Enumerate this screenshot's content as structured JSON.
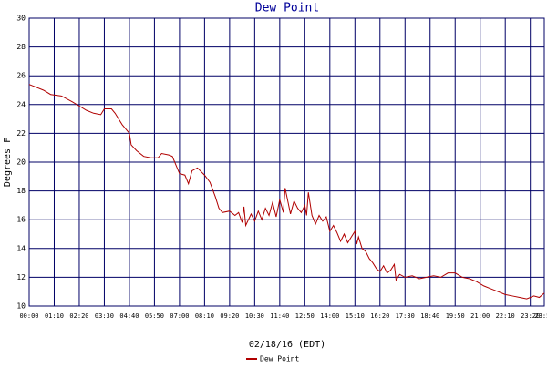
{
  "chart_data": {
    "type": "line",
    "title": "Dew Point",
    "x_label": "02/18/16 (EDT)",
    "y_label": "Degrees F",
    "x": [
      0,
      20,
      40,
      60,
      90,
      120,
      140,
      160,
      180,
      200,
      210,
      230,
      240,
      250,
      260,
      270,
      280,
      285,
      300,
      320,
      340,
      360,
      370,
      390,
      400,
      410,
      420,
      435,
      445,
      455,
      470,
      490,
      505,
      520,
      530,
      540,
      560,
      575,
      585,
      595,
      600,
      605,
      620,
      630,
      640,
      650,
      660,
      670,
      680,
      690,
      700,
      710,
      715,
      720,
      730,
      740,
      750,
      760,
      770,
      775,
      780,
      790,
      800,
      810,
      820,
      830,
      840,
      850,
      860,
      870,
      880,
      890,
      900,
      910,
      915,
      920,
      930,
      940,
      950,
      960,
      970,
      980,
      990,
      1000,
      1010,
      1020,
      1025,
      1035,
      1050,
      1070,
      1090,
      1110,
      1130,
      1150,
      1170,
      1190,
      1210,
      1230,
      1250,
      1270,
      1290,
      1310,
      1330,
      1350,
      1370,
      1390,
      1410,
      1425,
      1439
    ],
    "series": [
      {
        "name": "Dew Point",
        "color": "#b00000",
        "values": [
          25.4,
          25.2,
          25.0,
          24.7,
          24.6,
          24.2,
          23.9,
          23.6,
          23.4,
          23.3,
          23.7,
          23.7,
          23.4,
          23.0,
          22.6,
          22.3,
          22.0,
          21.2,
          20.8,
          20.4,
          20.3,
          20.3,
          20.6,
          20.5,
          20.4,
          19.8,
          19.2,
          19.1,
          18.5,
          19.4,
          19.6,
          19.1,
          18.6,
          17.6,
          16.8,
          16.5,
          16.6,
          16.3,
          16.5,
          15.8,
          16.9,
          15.6,
          16.4,
          15.9,
          16.6,
          16.0,
          16.8,
          16.3,
          17.2,
          16.2,
          17.4,
          16.5,
          18.2,
          17.6,
          16.4,
          17.3,
          16.8,
          16.5,
          17.0,
          16.3,
          17.9,
          16.3,
          15.7,
          16.3,
          15.9,
          16.2,
          15.2,
          15.6,
          15.1,
          14.5,
          15.0,
          14.4,
          14.8,
          15.2,
          14.3,
          14.8,
          14.0,
          13.8,
          13.3,
          13.0,
          12.6,
          12.4,
          12.8,
          12.3,
          12.5,
          12.9,
          11.8,
          12.2,
          12.0,
          12.1,
          11.9,
          12.0,
          12.1,
          12.0,
          12.3,
          12.3,
          12.0,
          11.9,
          11.7,
          11.4,
          11.2,
          11.0,
          10.8,
          10.7,
          10.6,
          10.5,
          10.7,
          10.6,
          10.9
        ]
      }
    ],
    "xlim": [
      0,
      1439
    ],
    "xticks": [
      {
        "value": 0,
        "label": "00:00"
      },
      {
        "value": 70,
        "label": "01:10"
      },
      {
        "value": 140,
        "label": "02:20"
      },
      {
        "value": 210,
        "label": "03:30"
      },
      {
        "value": 280,
        "label": "04:40"
      },
      {
        "value": 350,
        "label": "05:50"
      },
      {
        "value": 420,
        "label": "07:00"
      },
      {
        "value": 490,
        "label": "08:10"
      },
      {
        "value": 560,
        "label": "09:20"
      },
      {
        "value": 630,
        "label": "10:30"
      },
      {
        "value": 700,
        "label": "11:40"
      },
      {
        "value": 770,
        "label": "12:50"
      },
      {
        "value": 840,
        "label": "14:00"
      },
      {
        "value": 910,
        "label": "15:10"
      },
      {
        "value": 980,
        "label": "16:20"
      },
      {
        "value": 1050,
        "label": "17:30"
      },
      {
        "value": 1120,
        "label": "18:40"
      },
      {
        "value": 1190,
        "label": "19:50"
      },
      {
        "value": 1260,
        "label": "21:00"
      },
      {
        "value": 1330,
        "label": "22:10"
      },
      {
        "value": 1400,
        "label": "23:20"
      },
      {
        "value": 1439,
        "label": "23:59"
      }
    ],
    "ylim": [
      10,
      30
    ],
    "yticks": [
      10,
      12,
      14,
      16,
      18,
      20,
      22,
      24,
      26,
      28,
      30
    ],
    "grid": true,
    "grid_color": "#000066",
    "legend": "bottom"
  }
}
